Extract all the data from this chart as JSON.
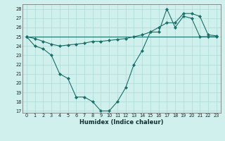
{
  "xlabel": "Humidex (Indice chaleur)",
  "bg_color": "#cff0ec",
  "grid_color": "#b0ddd8",
  "line_color": "#1a6e68",
  "xlim": [
    -0.5,
    23.5
  ],
  "ylim": [
    16.8,
    28.5
  ],
  "yticks": [
    17,
    18,
    19,
    20,
    21,
    22,
    23,
    24,
    25,
    26,
    27,
    28
  ],
  "xticks": [
    0,
    1,
    2,
    3,
    4,
    5,
    6,
    7,
    8,
    9,
    10,
    11,
    12,
    13,
    14,
    15,
    16,
    17,
    18,
    19,
    20,
    21,
    22,
    23
  ],
  "line1_x": [
    0,
    1,
    2,
    3,
    4,
    5,
    6,
    7,
    8,
    9,
    10,
    11,
    12,
    13,
    14,
    15,
    16,
    17,
    18,
    19,
    20,
    21,
    22,
    23
  ],
  "line1_y": [
    25.0,
    24.0,
    23.7,
    23.0,
    21.0,
    20.5,
    18.5,
    18.5,
    18.0,
    17.0,
    17.0,
    18.0,
    19.5,
    22.0,
    23.5,
    25.5,
    25.5,
    28.0,
    26.0,
    27.2,
    27.0,
    25.0,
    25.0,
    25.0
  ],
  "line2_x": [
    0,
    23
  ],
  "line2_y": [
    25.0,
    25.0
  ],
  "line3_x": [
    0,
    1,
    2,
    3,
    4,
    5,
    6,
    7,
    8,
    9,
    10,
    11,
    12,
    13,
    14,
    15,
    16,
    17,
    18,
    19,
    20,
    21,
    22,
    23
  ],
  "line3_y": [
    25.0,
    24.8,
    24.5,
    24.2,
    24.0,
    24.1,
    24.2,
    24.3,
    24.5,
    24.5,
    24.6,
    24.7,
    24.8,
    25.0,
    25.2,
    25.5,
    26.0,
    26.5,
    26.5,
    27.5,
    27.5,
    27.2,
    25.2,
    25.1
  ]
}
